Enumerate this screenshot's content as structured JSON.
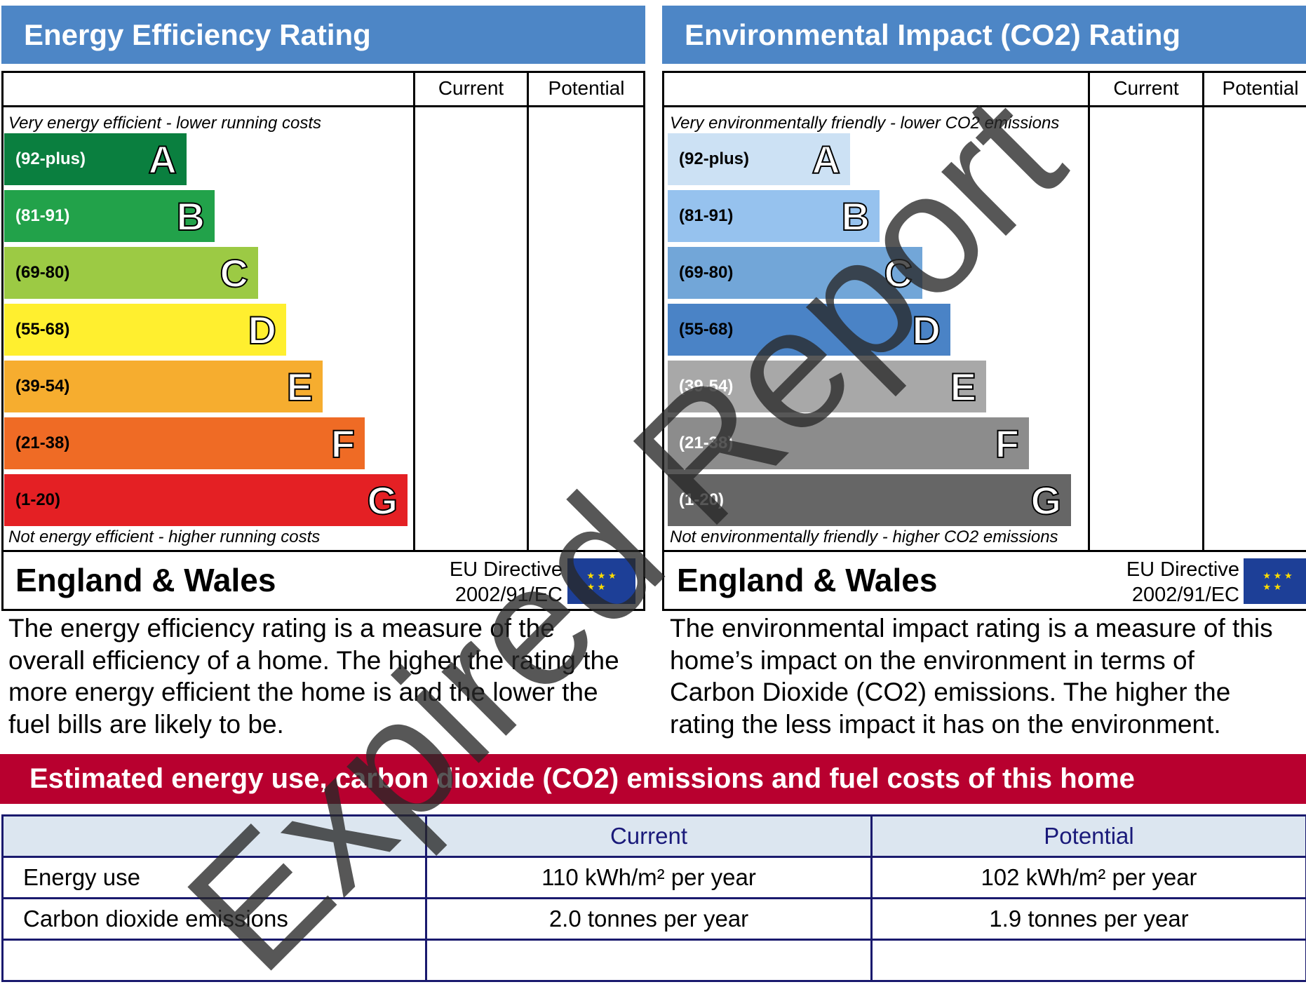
{
  "energy": {
    "title": "Energy Efficiency Rating",
    "col_current": "Current",
    "col_potential": "Potential",
    "top_note": "Very energy efficient - lower running costs",
    "bottom_note": "Not energy efficient - higher running costs",
    "bands": [
      {
        "range": "(92-plus)",
        "letter": "A",
        "color": "#0a7f3f"
      },
      {
        "range": "(81-91)",
        "letter": "B",
        "color": "#22a24a"
      },
      {
        "range": "(69-80)",
        "letter": "C",
        "color": "#9cca44"
      },
      {
        "range": "(55-68)",
        "letter": "D",
        "color": "#ffef2f"
      },
      {
        "range": "(39-54)",
        "letter": "E",
        "color": "#f6ad2f"
      },
      {
        "range": "(21-38)",
        "letter": "F",
        "color": "#ef6b25"
      },
      {
        "range": "(1-20)",
        "letter": "G",
        "color": "#e42024"
      }
    ],
    "region": "England & Wales",
    "directive_line1": "EU Directive",
    "directive_line2": "2002/91/EC",
    "description": [
      "The energy efficiency rating is a measure of the",
      "overall efficiency of a home. The higher the rating the",
      "more energy efficient the home is and the lower the",
      "fuel bills are likely to be."
    ]
  },
  "environment": {
    "title": "Environmental Impact (CO2) Rating",
    "col_current": "Current",
    "col_potential": "Potential",
    "top_note": "Very environmentally friendly - lower CO2 emissions",
    "bottom_note": "Not environmentally friendly - higher CO2 emissions",
    "bands": [
      {
        "range": "(92-plus)",
        "letter": "A",
        "color": "#cce1f4"
      },
      {
        "range": "(81-91)",
        "letter": "B",
        "color": "#96c2ee"
      },
      {
        "range": "(69-80)",
        "letter": "C",
        "color": "#72a6d8"
      },
      {
        "range": "(55-68)",
        "letter": "D",
        "color": "#4a83c6"
      },
      {
        "range": "(39-54)",
        "letter": "E",
        "color": "#a8a8a8"
      },
      {
        "range": "(21-38)",
        "letter": "F",
        "color": "#8c8c8c"
      },
      {
        "range": "(1-20)",
        "letter": "G",
        "color": "#666666"
      }
    ],
    "region": "England & Wales",
    "directive_line1": "EU Directive",
    "directive_line2": "2002/91/EC",
    "description": [
      "The environmental impact rating is a measure of this",
      "home’s impact on the environment in terms of",
      "Carbon Dioxide (CO2) emissions. The higher the",
      "rating the less impact it has on the environment."
    ]
  },
  "estimates": {
    "title": "Estimated energy use, carbon dioxide (CO2) emissions and fuel costs of this home",
    "col_current": "Current",
    "col_potential": "Potential",
    "rows": [
      {
        "label": "Energy use",
        "current": "110 kWh/m² per year",
        "potential": "102 kWh/m² per year"
      },
      {
        "label": "Carbon dioxide emissions",
        "current": "2.0 tonnes per year",
        "potential": "1.9 tonnes per year"
      },
      {
        "label": "",
        "current": "",
        "potential": ""
      }
    ]
  },
  "watermark": "Expired Report"
}
